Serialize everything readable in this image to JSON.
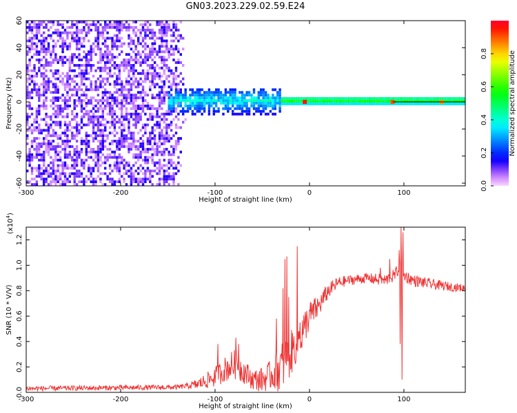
{
  "title": "GN03.2023.229.02.59.E24",
  "colors": {
    "snr_line": "#ee3333",
    "background": "#ffffff",
    "axis": "#000000",
    "ridge": "#000000"
  },
  "chart_data": [
    {
      "type": "heatmap",
      "name": "spectrogram",
      "title": "",
      "xlabel": "Height of straight line (km)",
      "ylabel": "Frequency (Hz)",
      "xlim": [
        -300,
        165
      ],
      "ylim": [
        -62,
        60
      ],
      "xticks": [
        -300,
        -200,
        -100,
        0,
        100
      ],
      "yticks": [
        -60,
        -40,
        -20,
        0,
        20,
        40,
        60
      ],
      "grid": false,
      "colorbar": {
        "label": "Normalized spectral amplitude",
        "range": [
          0,
          1
        ],
        "ticks": [
          0.0,
          0.2,
          0.4,
          0.6,
          0.8
        ],
        "colormap": "gist_rainbow_r"
      },
      "regions": [
        {
          "x": [
            -300,
            -130
          ],
          "freq": [
            -62,
            60
          ],
          "amplitude": [
            0.03,
            0.15
          ],
          "pattern": "noise"
        },
        {
          "x": [
            -150,
            -30
          ],
          "freq": [
            -10,
            10
          ],
          "amplitude": [
            0.15,
            0.45
          ],
          "pattern": "blob"
        },
        {
          "x": [
            -30,
            165
          ],
          "freq": [
            -2.5,
            2.5
          ],
          "amplitude": [
            0.35,
            0.65
          ],
          "pattern": "band"
        }
      ],
      "peaks": [
        {
          "x": -5,
          "freq": 0,
          "amplitude": 0.95
        },
        {
          "x": 88,
          "freq": 0,
          "amplitude": 0.9
        },
        {
          "x": 140,
          "freq": 0,
          "amplitude": 0.85
        }
      ],
      "ridge_line": {
        "x": [
          88,
          165
        ],
        "freq": 0
      }
    },
    {
      "type": "line",
      "name": "snr",
      "title": "",
      "xlabel": "Height of straight line (km)",
      "ylabel": "SNR (10 * V/V)",
      "y_multiplier": "(x10",
      "y_multiplier_exp": "4",
      "y_multiplier_close": ")",
      "xlim": [
        -300,
        165
      ],
      "ylim": [
        0,
        1.3
      ],
      "xticks": [
        -300,
        -200,
        -100,
        0,
        100
      ],
      "yticks": [
        0.0,
        0.2,
        0.4,
        0.6,
        0.8,
        1.0,
        1.2
      ],
      "grid": false,
      "series": [
        {
          "trend": {
            "x": [
              -300,
              -140,
              -120,
              -100,
              -90,
              -80,
              -70,
              -60,
              -50,
              -40,
              -30,
              -20,
              -10,
              0,
              10,
              20,
              30,
              40,
              60,
              80,
              90,
              95,
              100,
              110,
              130,
              150,
              165
            ],
            "y": [
              0.03,
              0.04,
              0.06,
              0.12,
              0.18,
              0.22,
              0.17,
              0.1,
              0.1,
              0.14,
              0.2,
              0.3,
              0.45,
              0.6,
              0.68,
              0.8,
              0.86,
              0.88,
              0.9,
              0.88,
              0.92,
              0.98,
              0.92,
              0.88,
              0.85,
              0.83,
              0.82
            ]
          },
          "noise": {
            "x": [
              -300,
              -130,
              -120,
              -100,
              -80,
              -60,
              -40,
              -30,
              -20,
              0,
              20,
              40,
              60,
              80,
              100,
              165
            ],
            "amp": [
              0.02,
              0.02,
              0.04,
              0.08,
              0.12,
              0.08,
              0.12,
              0.2,
              0.18,
              0.12,
              0.06,
              0.04,
              0.04,
              0.05,
              0.05,
              0.03
            ]
          },
          "spikes": [
            {
              "x": -97,
              "y": 0.38
            },
            {
              "x": -78,
              "y": 0.43
            },
            {
              "x": -75,
              "y": 0.38
            },
            {
              "x": -35,
              "y": 0.58
            },
            {
              "x": -28,
              "y": 0.82
            },
            {
              "x": -26,
              "y": 1.05
            },
            {
              "x": -24,
              "y": 1.07
            },
            {
              "x": -22,
              "y": 0.75
            },
            {
              "x": -13,
              "y": 1.15
            },
            {
              "x": -10,
              "y": 0.55
            },
            {
              "x": -8,
              "y": 0.35
            },
            {
              "x": -5,
              "y": 0.5
            },
            {
              "x": 75,
              "y": 0.98
            },
            {
              "x": 85,
              "y": 1.05
            },
            {
              "x": 95,
              "y": 1.12
            },
            {
              "x": 97,
              "y": 1.3
            },
            {
              "x": 99,
              "y": 1.26
            },
            {
              "x": 98,
              "y": 0.1
            },
            {
              "x": 96,
              "y": 0.38
            }
          ]
        }
      ]
    }
  ]
}
